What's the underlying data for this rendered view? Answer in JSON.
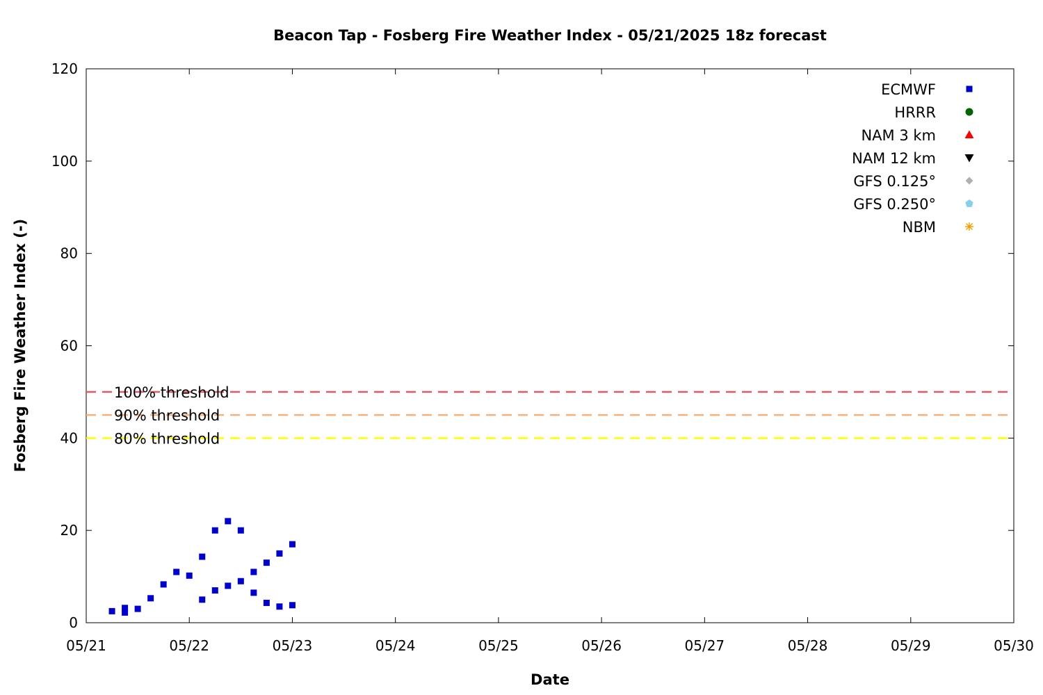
{
  "chart_data": {
    "type": "scatter",
    "title": "Beacon Tap - Fosberg Fire Weather Index - 05/21/2025 18z forecast",
    "xlabel": "Date",
    "ylabel": "Fosberg Fire Weather Index (-)",
    "xlim": [
      "2025-05-21T00:00",
      "2025-05-30T00:00"
    ],
    "ylim": [
      0,
      120
    ],
    "x_ticks": [
      "05/21",
      "05/22",
      "05/23",
      "05/24",
      "05/25",
      "05/26",
      "05/27",
      "05/28",
      "05/29",
      "05/30"
    ],
    "y_ticks": [
      0,
      20,
      40,
      60,
      80,
      100,
      120
    ],
    "grid": false,
    "legend_position": "top-right",
    "thresholds": [
      {
        "label": "100% threshold",
        "value": 50,
        "color": "#e05a6a"
      },
      {
        "label": "90% threshold",
        "value": 45,
        "color": "#f4b27a"
      },
      {
        "label": "80% threshold",
        "value": 40,
        "color": "#ffff00"
      }
    ],
    "series": [
      {
        "name": "ECMWF",
        "color": "#0000cc",
        "marker": "square",
        "points": [
          [
            "2025-05-21T06:00",
            2.5
          ],
          [
            "2025-05-21T09:00",
            2.2
          ],
          [
            "2025-05-21T09:00",
            3.2
          ],
          [
            "2025-05-21T12:00",
            3
          ],
          [
            "2025-05-21T15:00",
            5.3
          ],
          [
            "2025-05-21T18:00",
            8.3
          ],
          [
            "2025-05-21T21:00",
            11
          ],
          [
            "2025-05-22T00:00",
            10.2
          ],
          [
            "2025-05-22T03:00",
            14.3
          ],
          [
            "2025-05-22T06:00",
            20
          ],
          [
            "2025-05-22T09:00",
            22
          ],
          [
            "2025-05-22T12:00",
            20
          ],
          [
            "2025-05-22T15:00",
            6.5
          ],
          [
            "2025-05-22T18:00",
            4.3
          ],
          [
            "2025-05-22T21:00",
            3.5
          ],
          [
            "2025-05-23T00:00",
            3.8
          ],
          [
            "2025-05-22T03:00",
            5
          ],
          [
            "2025-05-22T06:00",
            7
          ],
          [
            "2025-05-22T09:00",
            8
          ],
          [
            "2025-05-22T12:00",
            9
          ],
          [
            "2025-05-22T15:00",
            11
          ],
          [
            "2025-05-22T18:00",
            13
          ],
          [
            "2025-05-22T21:00",
            15
          ],
          [
            "2025-05-23T00:00",
            17
          ]
        ]
      }
    ]
  },
  "legend": [
    {
      "label": "ECMWF",
      "color": "#0000cc",
      "marker": "square"
    },
    {
      "label": "HRRR",
      "color": "#006400",
      "marker": "circle"
    },
    {
      "label": "NAM 3 km",
      "color": "#ff0000",
      "marker": "triangle-up"
    },
    {
      "label": "NAM 12 km",
      "color": "#000000",
      "marker": "triangle-down"
    },
    {
      "label": "GFS 0.125°",
      "color": "#b0b0b0",
      "marker": "diamond"
    },
    {
      "label": "GFS 0.250°",
      "color": "#87ceeb",
      "marker": "pentagon"
    },
    {
      "label": "NBM",
      "color": "#f0a000",
      "marker": "star"
    }
  ]
}
